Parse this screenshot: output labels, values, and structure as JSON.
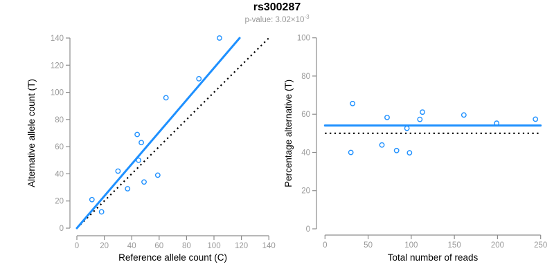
{
  "header": {
    "title": "rs300287",
    "subtitle_prefix": "p-value: ",
    "p_value_base": "3.02×10",
    "p_value_exponent": "-3"
  },
  "colors": {
    "accent_blue": "#1E90FF",
    "dotted_black": "#000000",
    "axis_gray": "#8c8c8c",
    "tick_label_gray": "#999999",
    "axis_title_black": "#000000"
  },
  "chart_data": [
    {
      "type": "scatter",
      "name": "allele-counts",
      "xlabel": "Reference allele count (C)",
      "ylabel": "Alternative allele count (T)",
      "xlim": [
        0,
        140
      ],
      "ylim": [
        0,
        140
      ],
      "xticks": [
        0,
        20,
        40,
        60,
        80,
        100,
        120,
        140
      ],
      "yticks": [
        0,
        20,
        40,
        60,
        80,
        100,
        120,
        140
      ],
      "grid": false,
      "points": [
        [
          11,
          21
        ],
        [
          18,
          12
        ],
        [
          30,
          42
        ],
        [
          37,
          29
        ],
        [
          44,
          69
        ],
        [
          45,
          50
        ],
        [
          47,
          63
        ],
        [
          49,
          34
        ],
        [
          59,
          39
        ],
        [
          65,
          96
        ],
        [
          89,
          110
        ],
        [
          104,
          140
        ]
      ],
      "fit_line": {
        "x1": 0,
        "y1": 0,
        "x2": 118.7,
        "y2": 140,
        "meaning": "regression y=1.18x"
      },
      "ref_line": {
        "x1": 0,
        "y1": 0,
        "x2": 140,
        "y2": 140,
        "meaning": "identity y=x"
      }
    },
    {
      "type": "scatter",
      "name": "percentage-vs-reads",
      "xlabel": "Total number of reads",
      "ylabel": "Percentage alternative (T)",
      "xlim": [
        0,
        250
      ],
      "ylim": [
        0,
        100
      ],
      "xticks": [
        0,
        50,
        100,
        150,
        200,
        250
      ],
      "yticks": [
        0,
        20,
        40,
        60,
        80,
        100
      ],
      "grid": false,
      "points": [
        [
          32,
          65.6
        ],
        [
          30,
          40.0
        ],
        [
          72,
          58.3
        ],
        [
          66,
          43.9
        ],
        [
          113,
          61.1
        ],
        [
          95,
          52.6
        ],
        [
          110,
          57.3
        ],
        [
          83,
          41.0
        ],
        [
          98,
          39.8
        ],
        [
          161,
          59.6
        ],
        [
          199,
          55.3
        ],
        [
          244,
          57.4
        ]
      ],
      "fit_line": {
        "x1": 0,
        "y1": 54.1,
        "x2": 250,
        "y2": 54.1,
        "meaning": "overall percentage 54.1%"
      },
      "ref_line": {
        "x1": 0,
        "y1": 50,
        "x2": 250,
        "y2": 50,
        "meaning": "50% reference"
      }
    }
  ]
}
